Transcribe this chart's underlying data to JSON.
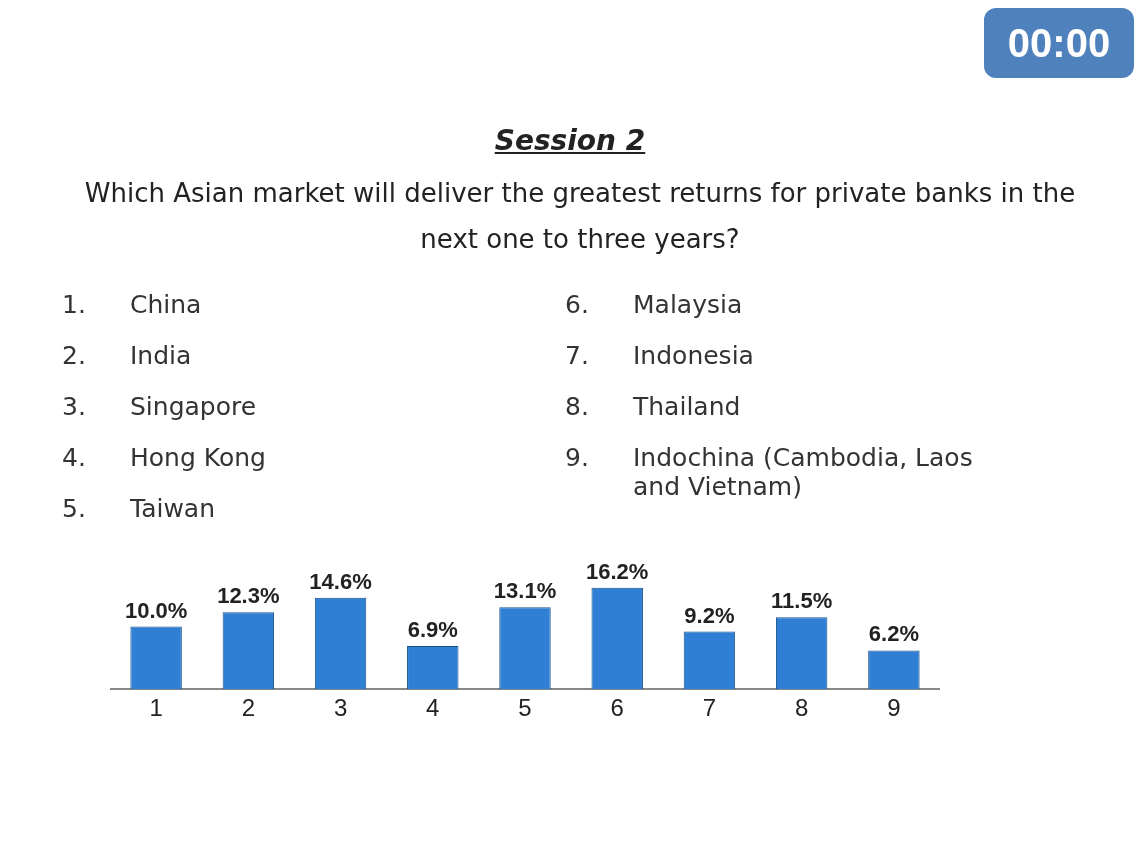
{
  "chart_data": {
    "type": "bar",
    "title": "Session 2",
    "subtitle": "Which Asian market will deliver the greatest returns for private banks in the next one to three years?",
    "categories": [
      "1",
      "2",
      "3",
      "4",
      "5",
      "6",
      "7",
      "8",
      "9"
    ],
    "values": [
      10.0,
      12.3,
      14.6,
      6.9,
      13.1,
      16.2,
      9.2,
      11.5,
      6.2
    ],
    "value_labels": [
      "10.0%",
      "12.3%",
      "14.6%",
      "6.9%",
      "13.1%",
      "16.2%",
      "9.2%",
      "11.5%",
      "6.2%"
    ],
    "color": "#2f80d4",
    "grid": false,
    "legend": false,
    "tick_labels": "x",
    "annotations": [
      "00:00",
      "1. China",
      "2. India",
      "3. Singapore",
      "4. Hong Kong",
      "5. Taiwan",
      "6. Malaysia",
      "7. Indonesia",
      "8. Thailand",
      "9. Indochina (Cambodia, Laos and Vietnam)"
    ]
  }
}
